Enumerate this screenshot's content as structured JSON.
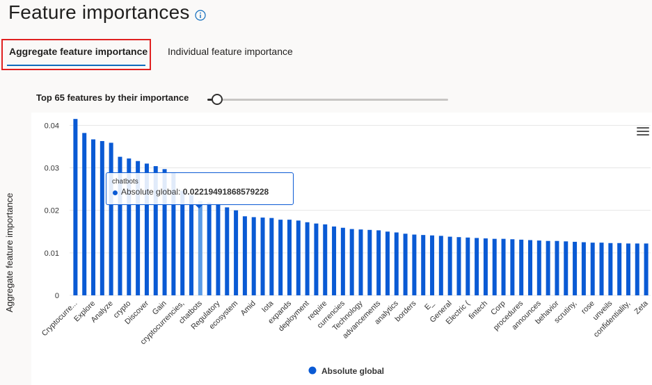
{
  "page": {
    "title": "Feature importances",
    "tabs": [
      {
        "label": "Aggregate feature importance",
        "selected": true
      },
      {
        "label": "Individual feature importance",
        "selected": false
      }
    ],
    "slider": {
      "label": "Top 65 features by their importance",
      "value": 65,
      "fill_fraction": 0.04
    }
  },
  "colors": {
    "bar": "#0a5ad4",
    "bar_hover": "#5b9be6",
    "accent": "#0f6cbd",
    "highlight_border": "#e02020"
  },
  "tooltip": {
    "feature": "chatbots",
    "series": "Absolute global:",
    "value": "0.02219491868579228"
  },
  "chart_data": {
    "type": "bar",
    "ylabel": "Aggregate feature importance",
    "ylim": [
      0,
      0.043
    ],
    "yticks": [
      0,
      0.01,
      0.02,
      0.03,
      0.04
    ],
    "ytick_labels": [
      "0",
      "0.01",
      "0.02",
      "0.03",
      "0.04"
    ],
    "grid": true,
    "legend_position": "bottom",
    "hover_index": 14,
    "series": [
      {
        "name": "Absolute global"
      }
    ],
    "categories": [
      "Cryptocurre...",
      "",
      "Explore",
      "",
      "Analyze",
      "",
      "crypto",
      "",
      "Discover",
      "",
      "Gain",
      "",
      "cryptocurrencies,",
      "",
      "chatbots",
      "",
      "Regulatory",
      "",
      "ecosystem",
      "",
      "Amid",
      "",
      "Iota",
      "",
      "expands",
      "",
      "deployment",
      "",
      "require",
      "",
      "currencies",
      "",
      "Technology",
      "",
      "advancements",
      "",
      "analytics",
      "",
      "borders",
      "",
      "E_",
      "",
      "General",
      "",
      "Electric (",
      "",
      "fintech",
      "",
      "Corp",
      "",
      "procedures",
      "",
      "announces",
      "",
      "behavior",
      "",
      "scrutiny,",
      "",
      "rose",
      "",
      "unveils",
      "",
      "confidentiality,",
      "",
      "Zeta"
    ],
    "values": [
      0.0415,
      0.0382,
      0.0367,
      0.0363,
      0.0359,
      0.0326,
      0.0322,
      0.0316,
      0.031,
      0.0304,
      0.0297,
      0.0289,
      0.0246,
      0.0236,
      0.0222,
      0.0218,
      0.0216,
      0.0207,
      0.02,
      0.0186,
      0.0184,
      0.0183,
      0.0182,
      0.0178,
      0.0178,
      0.0176,
      0.0172,
      0.0169,
      0.0167,
      0.0162,
      0.0159,
      0.0156,
      0.0155,
      0.0154,
      0.0153,
      0.015,
      0.0148,
      0.0145,
      0.0143,
      0.0142,
      0.0141,
      0.014,
      0.0138,
      0.0137,
      0.0136,
      0.0135,
      0.0134,
      0.0133,
      0.0133,
      0.0132,
      0.0131,
      0.013,
      0.0129,
      0.0128,
      0.0128,
      0.0127,
      0.0126,
      0.0125,
      0.0124,
      0.0124,
      0.0123,
      0.0123,
      0.0122,
      0.0122,
      0.0122
    ]
  }
}
